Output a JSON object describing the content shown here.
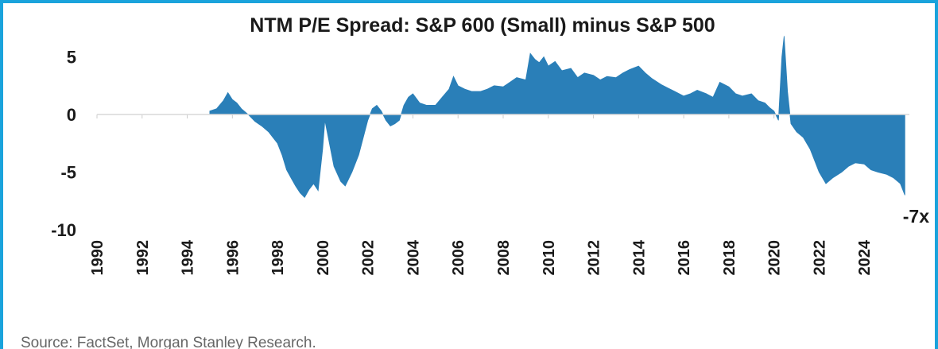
{
  "chart_data": {
    "type": "area",
    "title": "NTM P/E Spread: S&P 600 (Small) minus S&P 500",
    "xlabel": "",
    "ylabel": "",
    "xlim": [
      1990,
      2026
    ],
    "ylim": [
      -10,
      6.5
    ],
    "yticks": [
      5,
      0,
      -5,
      -10
    ],
    "ytick_labels": [
      "5",
      "0",
      "-5",
      "-10"
    ],
    "xticks": [
      1990,
      1992,
      1994,
      1996,
      1998,
      2000,
      2002,
      2004,
      2006,
      2008,
      2010,
      2012,
      2014,
      2016,
      2018,
      2020,
      2022,
      2024
    ],
    "xtick_labels": [
      "1990",
      "1992",
      "1994",
      "1996",
      "1998",
      "2000",
      "2002",
      "2004",
      "2006",
      "2008",
      "2010",
      "2012",
      "2014",
      "2016",
      "2018",
      "2020",
      "2022",
      "2024"
    ],
    "end_label": "-7x",
    "color": "#2a7fb8",
    "series": [
      {
        "name": "NTM P/E Spread",
        "x": [
          1995.0,
          1995.3,
          1995.6,
          1995.8,
          1996.0,
          1996.2,
          1996.4,
          1996.7,
          1997.0,
          1997.3,
          1997.6,
          1997.8,
          1998.0,
          1998.2,
          1998.4,
          1998.6,
          1998.8,
          1999.0,
          1999.2,
          1999.4,
          1999.6,
          1999.8,
          2000.0,
          2000.1,
          2000.3,
          2000.5,
          2000.8,
          2001.0,
          2001.3,
          2001.6,
          2001.8,
          2002.0,
          2002.2,
          2002.4,
          2002.6,
          2002.8,
          2003.0,
          2003.2,
          2003.4,
          2003.6,
          2003.8,
          2004.0,
          2004.3,
          2004.6,
          2005.0,
          2005.3,
          2005.6,
          2005.8,
          2006.0,
          2006.3,
          2006.6,
          2007.0,
          2007.3,
          2007.6,
          2008.0,
          2008.3,
          2008.6,
          2009.0,
          2009.2,
          2009.4,
          2009.6,
          2009.8,
          2010.0,
          2010.3,
          2010.6,
          2011.0,
          2011.3,
          2011.6,
          2012.0,
          2012.3,
          2012.6,
          2013.0,
          2013.3,
          2013.6,
          2014.0,
          2014.3,
          2014.6,
          2015.0,
          2015.3,
          2015.6,
          2016.0,
          2016.3,
          2016.6,
          2017.0,
          2017.3,
          2017.6,
          2018.0,
          2018.3,
          2018.6,
          2019.0,
          2019.3,
          2019.6,
          2019.8,
          2020.0,
          2020.2,
          2020.35,
          2020.45,
          2020.6,
          2020.75,
          2021.0,
          2021.3,
          2021.6,
          2022.0,
          2022.3,
          2022.6,
          2023.0,
          2023.3,
          2023.6,
          2024.0,
          2024.3,
          2024.6,
          2025.0,
          2025.3,
          2025.6,
          2025.8
        ],
        "values": [
          0.3,
          0.5,
          1.2,
          1.9,
          1.3,
          1.0,
          0.5,
          0.0,
          -0.6,
          -1.0,
          -1.5,
          -2.0,
          -2.5,
          -3.5,
          -4.8,
          -5.5,
          -6.2,
          -6.8,
          -7.2,
          -6.5,
          -6.0,
          -6.6,
          -3.0,
          -0.5,
          -2.5,
          -4.5,
          -5.8,
          -6.2,
          -5.0,
          -3.5,
          -2.0,
          -0.5,
          0.5,
          0.8,
          0.3,
          -0.5,
          -1.0,
          -0.8,
          -0.5,
          0.8,
          1.5,
          1.8,
          1.0,
          0.8,
          0.8,
          1.5,
          2.2,
          3.3,
          2.5,
          2.2,
          2.0,
          2.0,
          2.2,
          2.5,
          2.4,
          2.8,
          3.2,
          3.0,
          5.3,
          4.8,
          4.5,
          5.0,
          4.2,
          4.6,
          3.8,
          4.0,
          3.2,
          3.6,
          3.4,
          3.0,
          3.3,
          3.2,
          3.6,
          3.9,
          4.2,
          3.6,
          3.1,
          2.6,
          2.3,
          2.0,
          1.6,
          1.8,
          2.1,
          1.8,
          1.5,
          2.8,
          2.4,
          1.8,
          1.6,
          1.8,
          1.2,
          1.0,
          0.6,
          0.3,
          -0.5,
          5.0,
          6.8,
          2.0,
          -0.8,
          -1.5,
          -2.0,
          -3.0,
          -5.0,
          -6.0,
          -5.5,
          -5.0,
          -4.5,
          -4.2,
          -4.3,
          -4.8,
          -5.0,
          -5.2,
          -5.5,
          -6.0,
          -7.0
        ]
      }
    ]
  },
  "source_text": "Source: FactSet, Morgan Stanley Research."
}
